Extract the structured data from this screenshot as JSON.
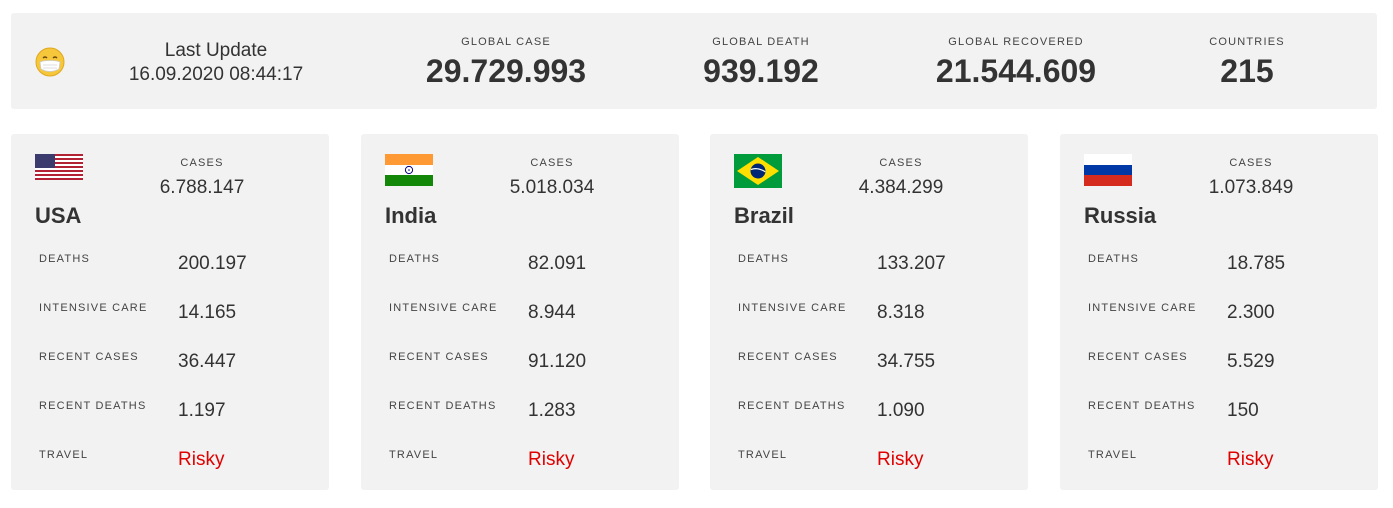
{
  "header": {
    "icon": "face-with-medical-mask-icon",
    "last_update_label": "Last Update",
    "last_update_value": "16.09.2020 08:44:17",
    "stats": [
      {
        "label": "GLOBAL CASE",
        "value": "29.729.993"
      },
      {
        "label": "GLOBAL DEATH",
        "value": "939.192"
      },
      {
        "label": "GLOBAL RECOVERED",
        "value": "21.544.609"
      },
      {
        "label": "COUNTRIES",
        "value": "215"
      }
    ]
  },
  "colors": {
    "panel": "#f2f2f2",
    "text": "#333333",
    "risky": "#e10000"
  },
  "countries": [
    {
      "name": "USA",
      "flag": "usa-flag-icon",
      "cases_label": "CASES",
      "cases": "6.788.147",
      "rows": [
        {
          "label": "DEATHS",
          "value": "200.197"
        },
        {
          "label": "INTENSIVE CARE",
          "value": "14.165"
        },
        {
          "label": "RECENT CASES",
          "value": "36.447"
        },
        {
          "label": "RECENT DEATHS",
          "value": "1.197"
        },
        {
          "label": "TRAVEL",
          "value": "Risky"
        }
      ]
    },
    {
      "name": "India",
      "flag": "india-flag-icon",
      "cases_label": "CASES",
      "cases": "5.018.034",
      "rows": [
        {
          "label": "DEATHS",
          "value": "82.091"
        },
        {
          "label": "INTENSIVE CARE",
          "value": "8.944"
        },
        {
          "label": "RECENT CASES",
          "value": "91.120"
        },
        {
          "label": "RECENT DEATHS",
          "value": "1.283"
        },
        {
          "label": "TRAVEL",
          "value": "Risky"
        }
      ]
    },
    {
      "name": "Brazil",
      "flag": "brazil-flag-icon",
      "cases_label": "CASES",
      "cases": "4.384.299",
      "rows": [
        {
          "label": "DEATHS",
          "value": "133.207"
        },
        {
          "label": "INTENSIVE CARE",
          "value": "8.318"
        },
        {
          "label": "RECENT CASES",
          "value": "34.755"
        },
        {
          "label": "RECENT DEATHS",
          "value": "1.090"
        },
        {
          "label": "TRAVEL",
          "value": "Risky"
        }
      ]
    },
    {
      "name": "Russia",
      "flag": "russia-flag-icon",
      "cases_label": "CASES",
      "cases": "1.073.849",
      "rows": [
        {
          "label": "DEATHS",
          "value": "18.785"
        },
        {
          "label": "INTENSIVE CARE",
          "value": "2.300"
        },
        {
          "label": "RECENT CASES",
          "value": "5.529"
        },
        {
          "label": "RECENT DEATHS",
          "value": "150"
        },
        {
          "label": "TRAVEL",
          "value": "Risky"
        }
      ]
    }
  ]
}
